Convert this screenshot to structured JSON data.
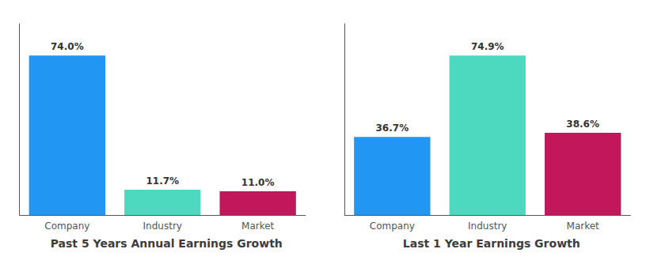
{
  "chart_data": [
    {
      "type": "bar",
      "title": "Past 5 Years Annual Earnings Growth",
      "categories": [
        "Company",
        "Industry",
        "Market"
      ],
      "values": [
        74.0,
        11.7,
        11.0
      ],
      "value_labels": [
        "74.0%",
        "11.7%",
        "11.0%"
      ],
      "colors": [
        "#2196f3",
        "#4dd9c0",
        "#c2185b"
      ],
      "data_labels": true,
      "ylim": [
        0,
        88.8
      ],
      "tick_labels": "x",
      "grid": false
    },
    {
      "type": "bar",
      "title": "Last 1 Year Earnings Growth",
      "categories": [
        "Company",
        "Industry",
        "Market"
      ],
      "values": [
        36.7,
        74.9,
        38.6
      ],
      "value_labels": [
        "36.7%",
        "74.9%",
        "38.6%"
      ],
      "colors": [
        "#2196f3",
        "#4dd9c0",
        "#c2185b"
      ],
      "data_labels": true,
      "ylim": [
        0,
        89.88
      ],
      "tick_labels": "x",
      "grid": false
    }
  ]
}
